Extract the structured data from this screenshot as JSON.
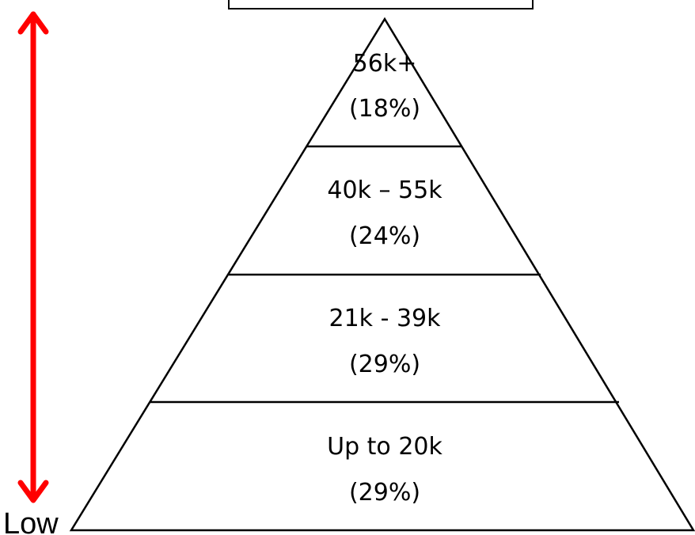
{
  "colors": {
    "arrow": "#ff0000",
    "outline": "#000000",
    "fill": "#ffffff"
  },
  "axis": {
    "bottom_label": "Low"
  },
  "pyramid": {
    "tiers": [
      {
        "range": "56k+",
        "share": "(18%)"
      },
      {
        "range": "40k – 55k",
        "share": "(24%)"
      },
      {
        "range": "21k - 39k",
        "share": "(29%)"
      },
      {
        "range": "Up to 20k",
        "share": "(29%)"
      }
    ]
  }
}
